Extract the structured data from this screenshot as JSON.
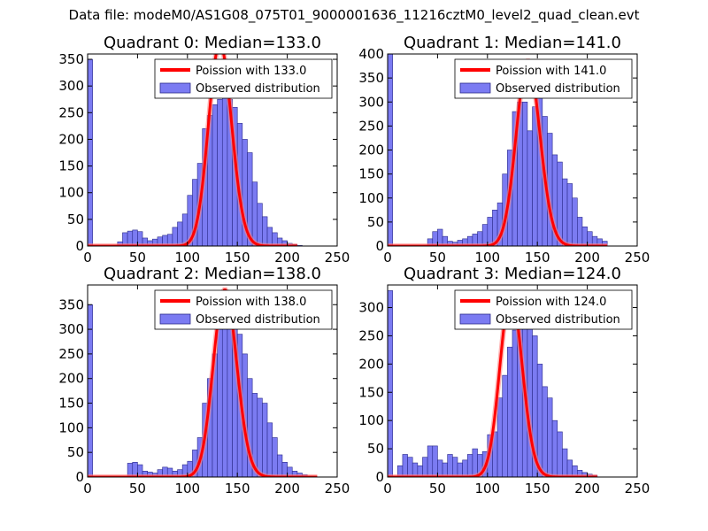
{
  "figure": {
    "suptitle": "Data file: modeM0/AS1G08_075T01_9000001636_11216cztM0_level2_quad_clean.evt"
  },
  "colors": {
    "bars": "#7b7bf2",
    "bar_edge": "#2a2a8a",
    "poisson": "#ff0000",
    "poisson_alpha": "#ff8080",
    "axes": "#000000"
  },
  "chart_data": [
    {
      "type": "bar",
      "title": "Quadrant 0: Median=133.0",
      "xlim": [
        0,
        250
      ],
      "ylim": [
        0,
        360
      ],
      "xticks": [
        0,
        50,
        100,
        150,
        200,
        250
      ],
      "yticks": [
        0,
        50,
        100,
        150,
        200,
        250,
        300,
        350
      ],
      "bin_width": 5,
      "bin_starts": [
        0,
        5,
        10,
        15,
        20,
        25,
        30,
        35,
        40,
        45,
        50,
        55,
        60,
        65,
        70,
        75,
        80,
        85,
        90,
        95,
        100,
        105,
        110,
        115,
        120,
        125,
        130,
        135,
        140,
        145,
        150,
        155,
        160,
        165,
        170,
        175,
        180,
        185,
        190,
        195,
        200,
        205,
        210,
        215,
        220,
        225,
        230,
        235,
        240,
        245
      ],
      "values": [
        350,
        0,
        0,
        0,
        0,
        0,
        8,
        25,
        28,
        30,
        27,
        15,
        10,
        13,
        17,
        20,
        22,
        35,
        45,
        60,
        95,
        125,
        155,
        220,
        245,
        265,
        275,
        282,
        275,
        260,
        230,
        200,
        175,
        120,
        80,
        55,
        35,
        25,
        15,
        10,
        5,
        3,
        1,
        0,
        0,
        0,
        0,
        0,
        0,
        0
      ],
      "poisson_lambda": 133.0,
      "poisson_peak": 380,
      "poisson_range": [
        0,
        210
      ],
      "legend": [
        "Poission with 133.0",
        "Observed distribution"
      ],
      "legend_location": "top-right"
    },
    {
      "type": "bar",
      "title": "Quadrant 1: Median=141.0",
      "xlim": [
        0,
        250
      ],
      "ylim": [
        0,
        400
      ],
      "xticks": [
        0,
        50,
        100,
        150,
        200,
        250
      ],
      "yticks": [
        0,
        50,
        100,
        150,
        200,
        250,
        300,
        350,
        400
      ],
      "bin_width": 5,
      "bin_starts": [
        0,
        5,
        10,
        15,
        20,
        25,
        30,
        35,
        40,
        45,
        50,
        55,
        60,
        65,
        70,
        75,
        80,
        85,
        90,
        95,
        100,
        105,
        110,
        115,
        120,
        125,
        130,
        135,
        140,
        145,
        150,
        155,
        160,
        165,
        170,
        175,
        180,
        185,
        190,
        195,
        200,
        205,
        210,
        215,
        220,
        225,
        230,
        235,
        240,
        245
      ],
      "values": [
        400,
        0,
        0,
        0,
        0,
        0,
        0,
        0,
        15,
        30,
        35,
        20,
        10,
        8,
        12,
        15,
        20,
        25,
        30,
        45,
        60,
        75,
        90,
        150,
        200,
        280,
        300,
        300,
        240,
        290,
        320,
        270,
        235,
        190,
        175,
        140,
        130,
        100,
        60,
        40,
        30,
        20,
        15,
        10,
        0,
        0,
        0,
        0,
        0,
        0
      ],
      "poisson_lambda": 141.0,
      "poisson_peak": 385,
      "poisson_range": [
        0,
        220
      ],
      "legend": [
        "Poission with 141.0",
        "Observed distribution"
      ],
      "legend_location": "top-right"
    },
    {
      "type": "bar",
      "title": "Quadrant 2: Median=138.0",
      "xlim": [
        0,
        250
      ],
      "ylim": [
        0,
        390
      ],
      "xticks": [
        0,
        50,
        100,
        150,
        200,
        250
      ],
      "yticks": [
        0,
        50,
        100,
        150,
        200,
        250,
        300,
        350
      ],
      "bin_width": 5,
      "bin_starts": [
        0,
        5,
        10,
        15,
        20,
        25,
        30,
        35,
        40,
        45,
        50,
        55,
        60,
        65,
        70,
        75,
        80,
        85,
        90,
        95,
        100,
        105,
        110,
        115,
        120,
        125,
        130,
        135,
        140,
        145,
        150,
        155,
        160,
        165,
        170,
        175,
        180,
        185,
        190,
        195,
        200,
        205,
        210,
        215,
        220,
        225,
        230,
        235,
        240,
        245
      ],
      "values": [
        350,
        0,
        0,
        0,
        0,
        0,
        0,
        0,
        28,
        30,
        25,
        12,
        10,
        8,
        15,
        20,
        18,
        12,
        15,
        25,
        32,
        55,
        80,
        150,
        200,
        250,
        300,
        330,
        350,
        345,
        290,
        250,
        200,
        170,
        160,
        150,
        110,
        80,
        45,
        30,
        20,
        12,
        8,
        5,
        0,
        0,
        0,
        0,
        0,
        0
      ],
      "poisson_lambda": 138.0,
      "poisson_peak": 380,
      "poisson_range": [
        0,
        230
      ],
      "legend": [
        "Poission with 138.0",
        "Observed distribution"
      ],
      "legend_location": "top-right"
    },
    {
      "type": "bar",
      "title": "Quadrant 3: Median=124.0",
      "xlim": [
        0,
        250
      ],
      "ylim": [
        0,
        340
      ],
      "xticks": [
        0,
        50,
        100,
        150,
        200,
        250
      ],
      "yticks": [
        0,
        50,
        100,
        150,
        200,
        250,
        300
      ],
      "bin_width": 5,
      "bin_starts": [
        0,
        5,
        10,
        15,
        20,
        25,
        30,
        35,
        40,
        45,
        50,
        55,
        60,
        65,
        70,
        75,
        80,
        85,
        90,
        95,
        100,
        105,
        110,
        115,
        120,
        125,
        130,
        135,
        140,
        145,
        150,
        155,
        160,
        165,
        170,
        175,
        180,
        185,
        190,
        195,
        200,
        205,
        210,
        215,
        220,
        225,
        230,
        235,
        240,
        245
      ],
      "values": [
        330,
        0,
        20,
        40,
        35,
        25,
        20,
        35,
        55,
        55,
        30,
        25,
        40,
        35,
        25,
        30,
        40,
        50,
        40,
        45,
        75,
        80,
        140,
        180,
        230,
        260,
        280,
        320,
        310,
        250,
        200,
        160,
        140,
        100,
        80,
        50,
        30,
        20,
        12,
        8,
        5,
        3,
        0,
        0,
        0,
        0,
        0,
        0,
        0,
        0
      ],
      "poisson_lambda": 124.0,
      "poisson_peak": 325,
      "poisson_range": [
        0,
        210
      ],
      "legend": [
        "Poission with 124.0",
        "Observed distribution"
      ],
      "legend_location": "top-right"
    }
  ]
}
